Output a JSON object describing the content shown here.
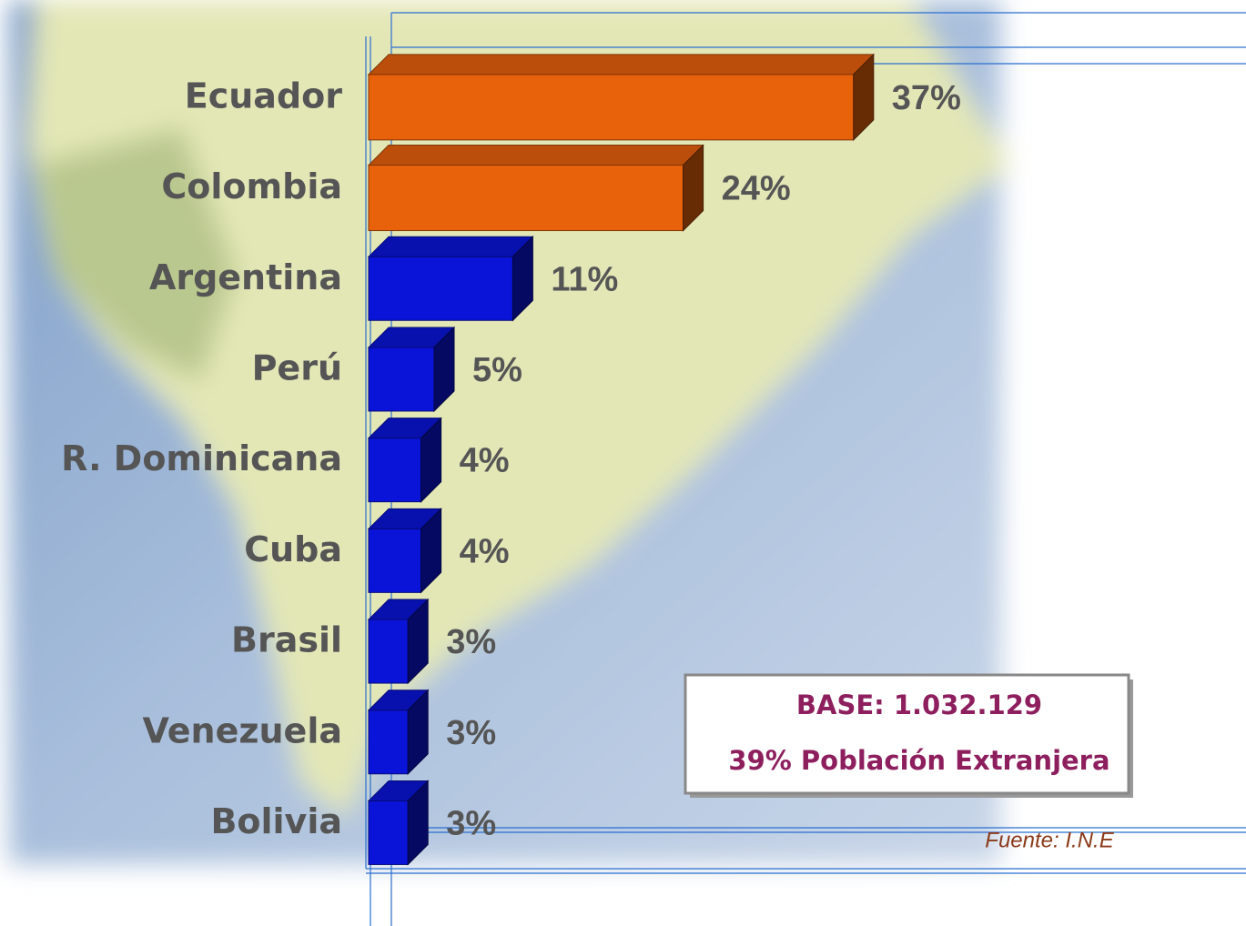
{
  "chart_data": {
    "type": "bar3d-horizontal",
    "categories": [
      "Ecuador",
      "Colombia",
      "Argentina",
      "Perú",
      "R. Dominicana",
      "Cuba",
      "Brasil",
      "Venezuela",
      "Bolivia"
    ],
    "values": [
      37,
      24,
      11,
      5,
      4,
      4,
      3,
      3,
      3
    ],
    "value_labels": [
      "37%",
      "24%",
      "11%",
      "5%",
      "4%",
      "4%",
      "3%",
      "3%",
      "3%"
    ],
    "colors": [
      "#e8620c",
      "#e8620c",
      "#0a14d8",
      "#0a14d8",
      "#0a14d8",
      "#0a14d8",
      "#0a14d8",
      "#0a14d8",
      "#0a14d8"
    ],
    "xlim": [
      0,
      40
    ],
    "annotations": [
      "BASE: 1.032.129",
      "39% Población Extranjera",
      "Fuente: I.N.E"
    ]
  }
}
